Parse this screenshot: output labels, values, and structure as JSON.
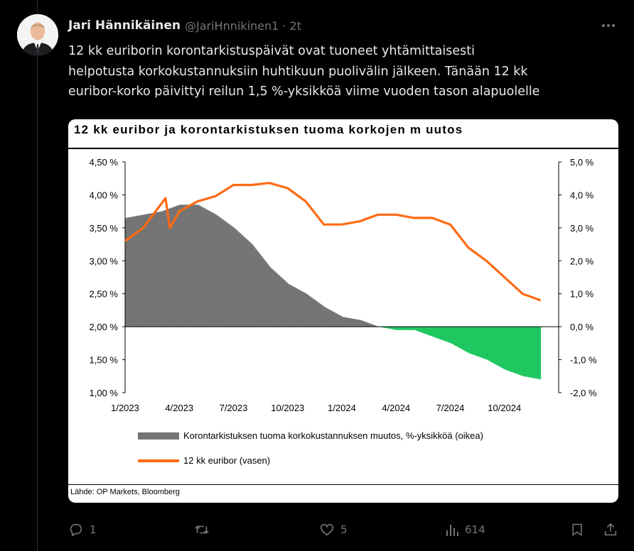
{
  "author": {
    "name": "Jari Hännikäinen",
    "handle": "@JariHnnikinen1",
    "separator": "·",
    "time": "2t"
  },
  "tweet_lines": [
    "12 kk euriborin korontarkistuspäivät ovat tuoneet yhtämittaisesti",
    "helpotusta korkokustannuksiin huhtikuun puolivälin jälkeen. Tänään 12 kk",
    "euribor-korko päivittyi reilun 1,5 %-yksikköä viime vuoden tason alapuolelle"
  ],
  "actions": {
    "replies": "1",
    "reposts": "",
    "likes": "5",
    "views": "614"
  },
  "icons": [
    "more-icon",
    "reply-icon",
    "repost-icon",
    "like-icon",
    "views-icon",
    "bookmark-icon",
    "share-icon"
  ],
  "chart_data": {
    "type": "line",
    "title": "12 kk euribor ja korontarkistuksen tuoma korkojen m uutos",
    "x_tick_labels": [
      "1/2023",
      "4/2023",
      "7/2023",
      "10/2023",
      "1/2024",
      "4/2024",
      "7/2024",
      "10/2024"
    ],
    "y_left_ticks": [
      "4,50 %",
      "4,00 %",
      "3,50 %",
      "3,00 %",
      "2,50 %",
      "2,00 %",
      "1,50 %",
      "1,00 %"
    ],
    "y_right_ticks": [
      "5,0 %",
      "4,0 %",
      "3,0 %",
      "2,0 %",
      "1,0 %",
      "0,0 %",
      "-1,0 %",
      "-2,0 %"
    ],
    "ylim_left": [
      1.0,
      4.5
    ],
    "ylim_right": [
      -2.0,
      5.0
    ],
    "series": [
      {
        "name": "12 kk euribor (vasen)",
        "axis": "left",
        "color": "#ff6a13",
        "x": [
          "1/2023",
          "2/2023",
          "3/2023",
          "3/2023",
          "4/2023",
          "5/2023",
          "6/2023",
          "7/2023",
          "8/2023",
          "9/2023",
          "10/2023",
          "11/2023",
          "12/2023",
          "1/2024",
          "2/2024",
          "3/2024",
          "4/2024",
          "5/2024",
          "6/2024",
          "7/2024",
          "8/2024",
          "9/2024",
          "10/2024",
          "11/2024",
          "12/2024"
        ],
        "values": [
          3.3,
          3.5,
          3.95,
          3.5,
          3.75,
          3.9,
          3.98,
          4.15,
          4.15,
          4.18,
          4.1,
          3.9,
          3.55,
          3.55,
          3.6,
          3.7,
          3.7,
          3.65,
          3.65,
          3.55,
          3.2,
          3.0,
          2.75,
          2.5,
          2.4
        ]
      },
      {
        "name": "Korontarkistuksen tuoma korkokustannuksen muutos, %-yksikköä (oikea)",
        "axis": "right",
        "color": "#757575",
        "negative_color": "#1ec760",
        "x": [
          "1/2023",
          "2/2023",
          "3/2023",
          "4/2023",
          "5/2023",
          "6/2023",
          "7/2023",
          "8/2023",
          "9/2023",
          "10/2023",
          "11/2023",
          "12/2023",
          "1/2024",
          "2/2024",
          "3/2024",
          "4/2024",
          "5/2024",
          "6/2024",
          "7/2024",
          "8/2024",
          "9/2024",
          "10/2024",
          "11/2024",
          "12/2024"
        ],
        "values": [
          3.3,
          3.4,
          3.5,
          3.7,
          3.7,
          3.4,
          3.0,
          2.5,
          1.8,
          1.3,
          1.0,
          0.6,
          0.3,
          0.2,
          0.0,
          -0.1,
          -0.1,
          -0.3,
          -0.5,
          -0.8,
          -1.0,
          -1.3,
          -1.5,
          -1.6
        ]
      }
    ],
    "legend": [
      {
        "label": "Korontarkistuksen tuoma korkokustannuksen muutos, %-yksikköä (oikea)",
        "color": "#757575"
      },
      {
        "label": "12 kk euribor (vasen)",
        "color": "#ff6a13"
      }
    ],
    "source": "Lähde: OP Markets, Bloomberg"
  }
}
